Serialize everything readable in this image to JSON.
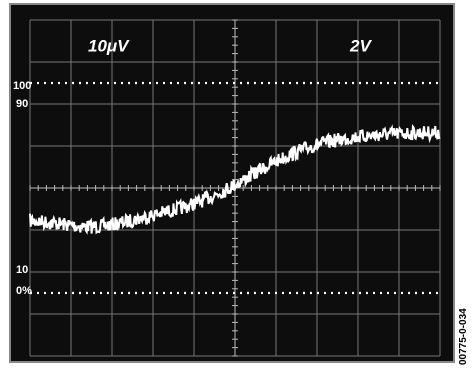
{
  "screen": {
    "channel_1_scale": "10μV",
    "channel_2_scale": "2V",
    "level_labels": [
      "100",
      "90",
      "10",
      "0%"
    ]
  },
  "figure_id": "00775-0-034"
}
